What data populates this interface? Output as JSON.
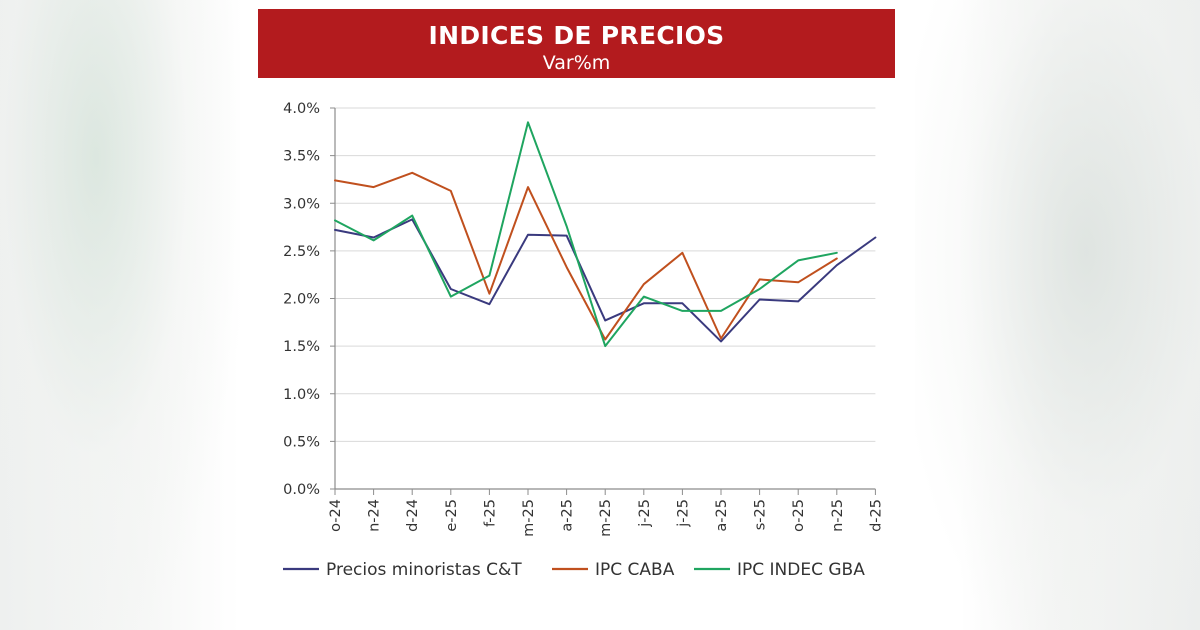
{
  "chart_data": {
    "type": "line",
    "title": "INDICES DE PRECIOS",
    "subtitle": "Var%m",
    "categories": [
      "o-24",
      "n-24",
      "d-24",
      "e-25",
      "f-25",
      "m-25",
      "a-25",
      "m-25",
      "j-25",
      "j-25",
      "a-25",
      "s-25",
      "o-25",
      "n-25",
      "d-25"
    ],
    "yticks": [
      "0.0%",
      "0.5%",
      "1.0%",
      "1.5%",
      "2.0%",
      "2.5%",
      "3.0%",
      "3.5%",
      "4.0%"
    ],
    "ylim": [
      0,
      4
    ],
    "grid": true,
    "legend_position": "bottom",
    "series": [
      {
        "name": "Precios minoristas C&T",
        "color": "#3a3a7e",
        "values": [
          2.72,
          2.64,
          2.83,
          2.1,
          1.94,
          2.67,
          2.66,
          1.77,
          1.95,
          1.95,
          1.55,
          1.99,
          1.97,
          2.35,
          2.64
        ]
      },
      {
        "name": "IPC CABA",
        "color": "#c0501e",
        "values": [
          3.24,
          3.17,
          3.32,
          3.13,
          2.05,
          3.17,
          2.33,
          1.57,
          2.15,
          2.48,
          1.58,
          2.2,
          2.17,
          2.42,
          null
        ]
      },
      {
        "name": "IPC INDEC GBA",
        "color": "#1fa560",
        "values": [
          2.82,
          2.61,
          2.87,
          2.02,
          2.24,
          3.85,
          2.76,
          1.5,
          2.02,
          1.87,
          1.87,
          2.1,
          2.4,
          2.48,
          null
        ]
      }
    ]
  }
}
